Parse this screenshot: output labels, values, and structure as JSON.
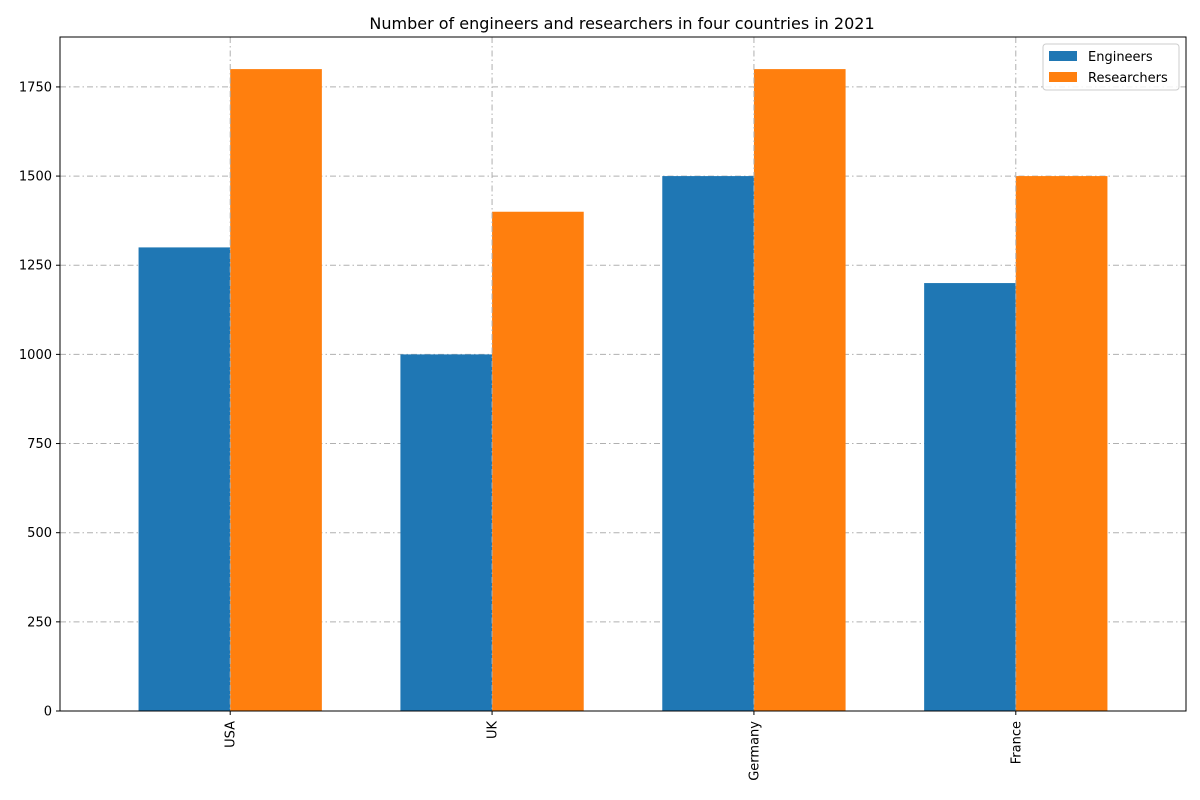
{
  "chart_data": {
    "type": "bar",
    "title": "Number of engineers and researchers in four countries in 2021",
    "xlabel": "",
    "ylabel": "",
    "categories": [
      "USA",
      "UK",
      "Germany",
      "France"
    ],
    "series": [
      {
        "name": "Engineers",
        "values": [
          1300,
          1000,
          1500,
          1200
        ],
        "color": "#1f77b4"
      },
      {
        "name": "Researchers",
        "values": [
          1800,
          1400,
          1800,
          1500
        ],
        "color": "#ff7f0e"
      }
    ],
    "ylim": [
      0,
      1890
    ],
    "yticks": [
      0,
      250,
      500,
      750,
      1000,
      1250,
      1500,
      1750
    ],
    "grid": true,
    "grid_style": "dash-dot",
    "legend_position": "top-right",
    "x_tick_rotation": "vertical"
  }
}
